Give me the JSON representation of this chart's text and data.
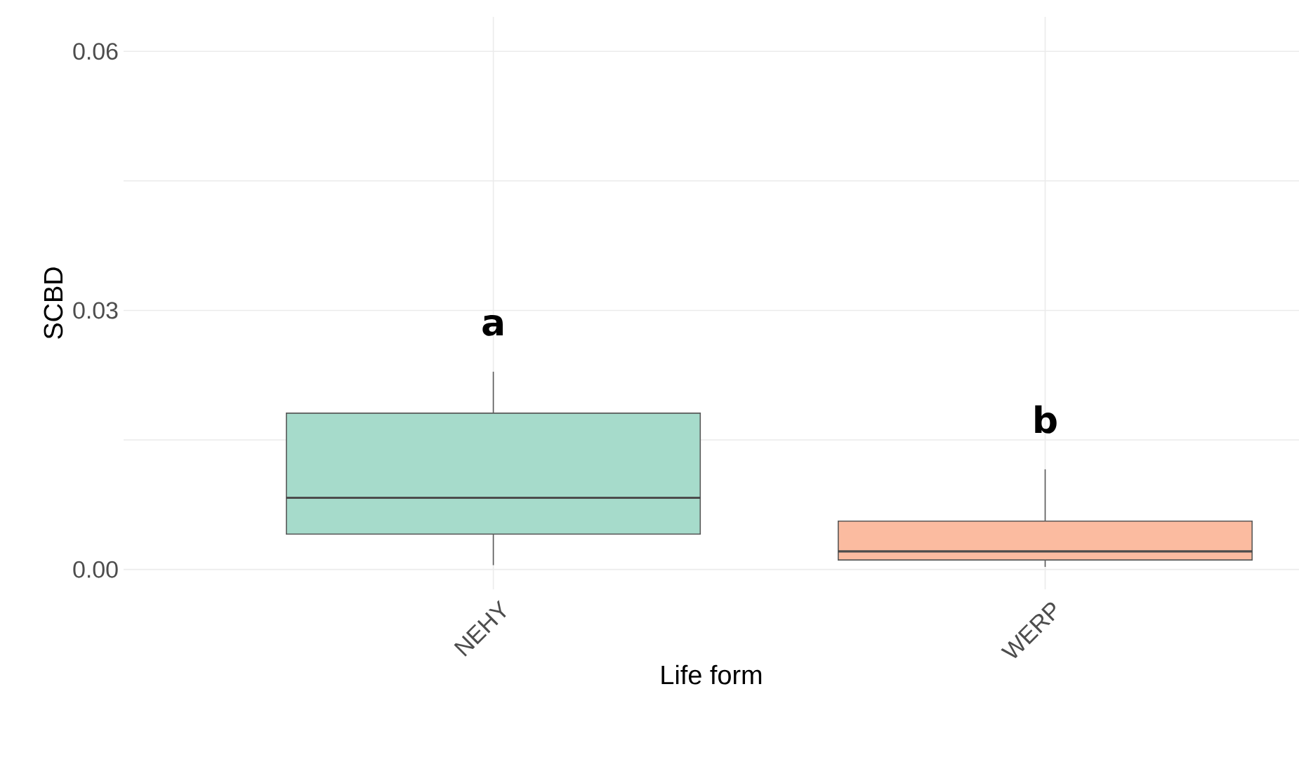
{
  "chart_data": {
    "type": "box",
    "xlabel": "Life form",
    "ylabel": "SCBD",
    "categories": [
      "NEHY",
      "WERP"
    ],
    "colors": [
      "#a6dbcb",
      "#fbbba0"
    ],
    "boxes": [
      {
        "low": 0.0005,
        "q1": 0.0041,
        "median": 0.0083,
        "q3": 0.0181,
        "high": 0.0229
      },
      {
        "low": 0.0003,
        "q1": 0.0011,
        "median": 0.0021,
        "q3": 0.0056,
        "high": 0.0116
      }
    ],
    "ylim": [
      -0.0023,
      0.064
    ],
    "yticks": [
      {
        "value": 0,
        "label": "0.00"
      },
      {
        "value": 0.03,
        "label": "0.03"
      },
      {
        "value": 0.06,
        "label": "0.06"
      }
    ],
    "grid": true,
    "annotations": [
      "a",
      "b"
    ]
  }
}
